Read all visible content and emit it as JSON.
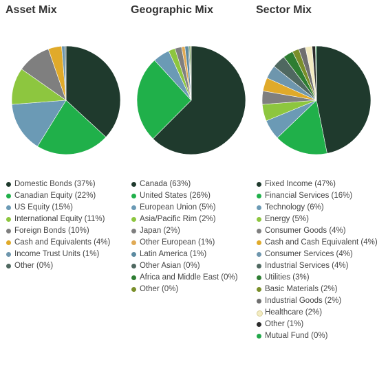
{
  "chart_data": [
    {
      "type": "pie",
      "title": "Asset Mix",
      "legend_position": "bottom",
      "slices": [
        {
          "label": "Domestic Bonds (37%)",
          "value": 37,
          "color": "#1f3a2d"
        },
        {
          "label": "Canadian Equity (22%)",
          "value": 22,
          "color": "#20b04a"
        },
        {
          "label": "US Equity (15%)",
          "value": 15,
          "color": "#6b9ab5"
        },
        {
          "label": "International Equity (11%)",
          "value": 11,
          "color": "#8dc63f"
        },
        {
          "label": "Foreign Bonds (10%)",
          "value": 10,
          "color": "#7f7f7f"
        },
        {
          "label": "Cash and Equivalents (4%)",
          "value": 4,
          "color": "#e0aa2a"
        },
        {
          "label": "Income Trust Units (1%)",
          "value": 1,
          "color": "#6e96ad"
        },
        {
          "label": "Other (0%)",
          "value": 0.3,
          "color": "#4f6860"
        }
      ]
    },
    {
      "type": "pie",
      "title": "Geographic Mix",
      "legend_position": "bottom",
      "slices": [
        {
          "label": "Canada (63%)",
          "value": 63,
          "color": "#1f3a2d"
        },
        {
          "label": "United States (26%)",
          "value": 26,
          "color": "#20b04a"
        },
        {
          "label": "European Union (5%)",
          "value": 5,
          "color": "#6b9ab5"
        },
        {
          "label": "Asia/Pacific Rim (2%)",
          "value": 2,
          "color": "#8dc63f"
        },
        {
          "label": "Japan (2%)",
          "value": 2,
          "color": "#7f7f7f"
        },
        {
          "label": "Other European (1%)",
          "value": 1,
          "color": "#e0aa55"
        },
        {
          "label": "Latin America (1%)",
          "value": 1,
          "color": "#5b8aa0"
        },
        {
          "label": "Other Asian (0%)",
          "value": 0.3,
          "color": "#4f6860"
        },
        {
          "label": "Africa and Middle East (0%)",
          "value": 0.3,
          "color": "#2e7d32"
        },
        {
          "label": "Other (0%)",
          "value": 0.3,
          "color": "#7a8f2a"
        }
      ]
    },
    {
      "type": "pie",
      "title": "Sector Mix",
      "legend_position": "bottom",
      "slices": [
        {
          "label": "Fixed Income (47%)",
          "value": 47,
          "color": "#1f3a2d"
        },
        {
          "label": "Financial Services (16%)",
          "value": 16,
          "color": "#20b04a"
        },
        {
          "label": "Technology (6%)",
          "value": 6,
          "color": "#6b9ab5"
        },
        {
          "label": "Energy (5%)",
          "value": 5,
          "color": "#8dc63f"
        },
        {
          "label": "Consumer Goods (4%)",
          "value": 4,
          "color": "#7f7f7f"
        },
        {
          "label": "Cash and Cash Equivalent (4%)",
          "value": 4,
          "color": "#e0aa2a"
        },
        {
          "label": "Consumer Services (4%)",
          "value": 4,
          "color": "#6e96ad"
        },
        {
          "label": "Industrial Services (4%)",
          "value": 4,
          "color": "#4f6860"
        },
        {
          "label": "Utilities (3%)",
          "value": 3,
          "color": "#2e7d32"
        },
        {
          "label": "Basic Materials (2%)",
          "value": 2,
          "color": "#7a8f2a"
        },
        {
          "label": "Industrial Goods (2%)",
          "value": 2,
          "color": "#6f6f6f"
        },
        {
          "label": "Healthcare (2%)",
          "value": 2,
          "color": "#f3ecc2"
        },
        {
          "label": "Other (1%)",
          "value": 1,
          "color": "#2b2b2b"
        },
        {
          "label": "Mutual Fund (0%)",
          "value": 0.3,
          "color": "#22a84a"
        }
      ]
    }
  ]
}
